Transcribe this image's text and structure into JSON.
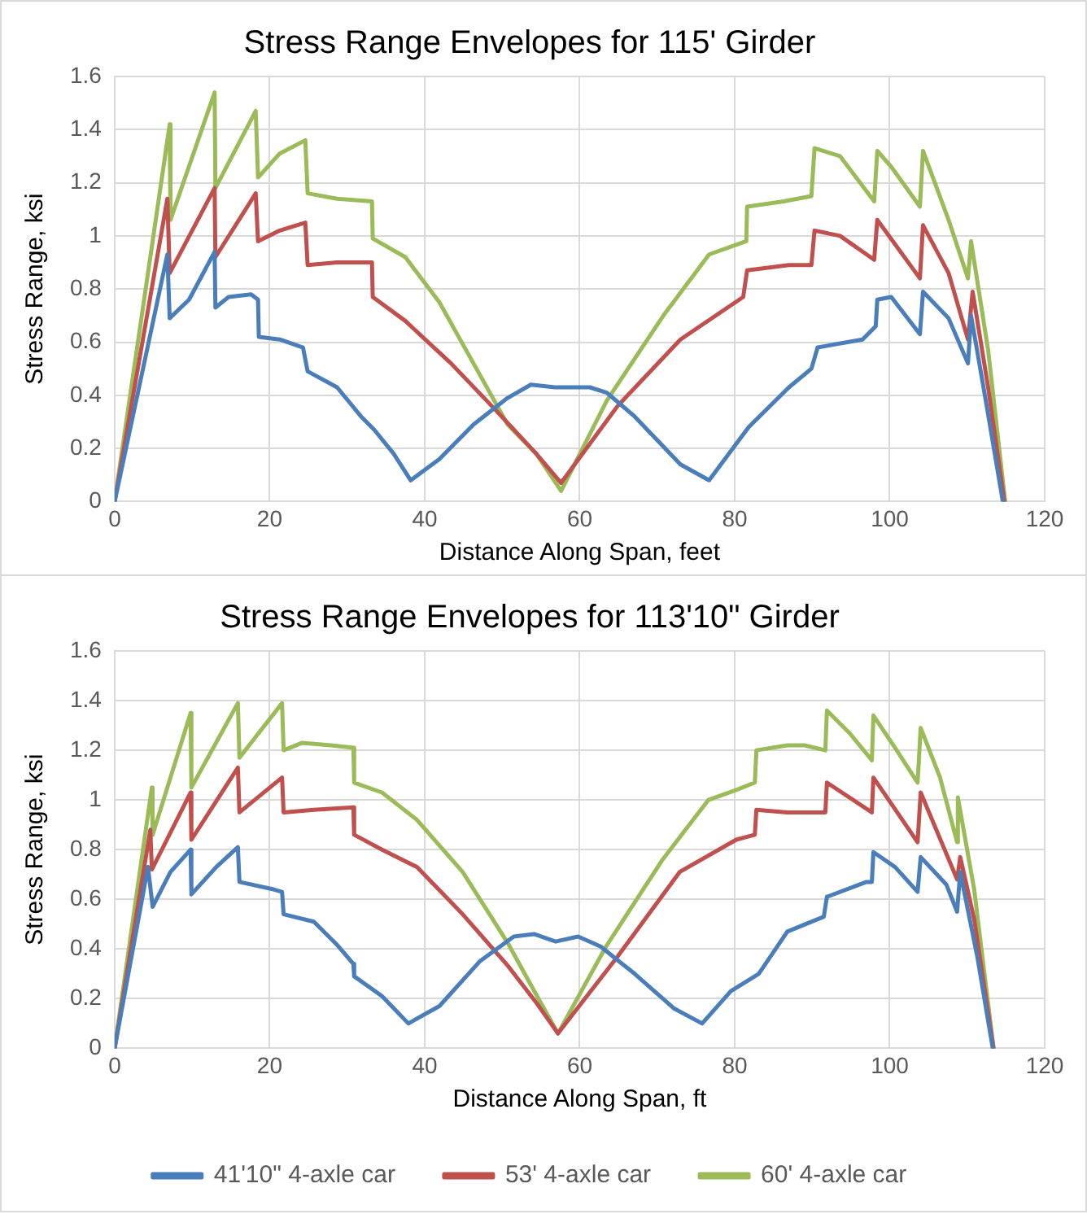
{
  "chart_data": [
    {
      "type": "line",
      "title": "Stress Range Envelopes for 115' Girder",
      "xlabel": "Distance Along Span, feet",
      "ylabel": "Stress Range, ksi",
      "xlim": [
        0,
        120
      ],
      "xticks": [
        0,
        20,
        40,
        60,
        80,
        100,
        120
      ],
      "ylim": [
        0,
        1.6
      ],
      "yticks": [
        0,
        0.2,
        0.4,
        0.6,
        0.8,
        1,
        1.2,
        1.4,
        1.6
      ],
      "grid": true,
      "marker": "none",
      "line_style": "solid",
      "legend": false,
      "series": [
        {
          "color": "#4a7ebb",
          "x": [
            0,
            6.8,
            7.1,
            9.6,
            12.9,
            13.0,
            14.7,
            17.6,
            18.5,
            18.6,
            21.3,
            24.3,
            24.9,
            28.7,
            31.8,
            33.5,
            36.0,
            38.2,
            41.9,
            46.3,
            50.7,
            53.7,
            56.8,
            61.3,
            63.5,
            67.1,
            73.0,
            76.7,
            81.8,
            87.0,
            89.9,
            90.7,
            96.5,
            98.2,
            98.4,
            100.2,
            103.9,
            104.3,
            107.6,
            110.1,
            110.5,
            112.4,
            114.6
          ],
          "values": [
            0,
            0.93,
            0.69,
            0.76,
            0.94,
            0.73,
            0.77,
            0.78,
            0.76,
            0.62,
            0.61,
            0.58,
            0.49,
            0.43,
            0.32,
            0.27,
            0.18,
            0.08,
            0.16,
            0.29,
            0.39,
            0.44,
            0.43,
            0.43,
            0.41,
            0.32,
            0.14,
            0.08,
            0.28,
            0.43,
            0.5,
            0.58,
            0.61,
            0.66,
            0.76,
            0.77,
            0.63,
            0.79,
            0.69,
            0.52,
            0.7,
            0.38,
            0
          ]
        },
        {
          "color": "#c0504d",
          "x": [
            0,
            6.8,
            7.1,
            12.9,
            13.0,
            18.2,
            18.5,
            21.3,
            24.6,
            24.9,
            28.7,
            33.2,
            33.3,
            37.5,
            43.4,
            49.3,
            54.4,
            57.6,
            64.9,
            73.0,
            81.1,
            81.6,
            87.0,
            89.9,
            90.3,
            93.6,
            98.0,
            98.4,
            103.9,
            104.3,
            107.6,
            110.1,
            110.7,
            112.7,
            114.8
          ],
          "values": [
            0,
            1.14,
            0.86,
            1.18,
            0.92,
            1.16,
            0.98,
            1.02,
            1.05,
            0.89,
            0.9,
            0.9,
            0.77,
            0.68,
            0.52,
            0.34,
            0.18,
            0.07,
            0.36,
            0.61,
            0.77,
            0.87,
            0.89,
            0.89,
            1.02,
            1.0,
            0.91,
            1.06,
            0.84,
            1.04,
            0.86,
            0.61,
            0.79,
            0.43,
            0
          ]
        },
        {
          "color": "#9bbb59",
          "x": [
            0,
            7.1,
            7.2,
            12.9,
            13.0,
            18.2,
            18.5,
            21.3,
            24.6,
            24.9,
            28.7,
            33.2,
            33.3,
            37.5,
            41.9,
            46.3,
            50.7,
            54.4,
            57.6,
            63.5,
            70.8,
            76.7,
            81.5,
            81.6,
            86.3,
            89.9,
            90.3,
            93.6,
            98.0,
            98.4,
            100.2,
            103.9,
            104.3,
            107.6,
            110.1,
            110.5,
            112.7,
            114.9
          ],
          "values": [
            0,
            1.42,
            1.06,
            1.54,
            1.18,
            1.47,
            1.22,
            1.31,
            1.36,
            1.16,
            1.14,
            1.13,
            0.99,
            0.92,
            0.75,
            0.52,
            0.29,
            0.18,
            0.04,
            0.38,
            0.7,
            0.93,
            0.98,
            1.11,
            1.13,
            1.15,
            1.33,
            1.3,
            1.13,
            1.32,
            1.26,
            1.11,
            1.32,
            1.06,
            0.84,
            0.98,
            0.57,
            0
          ]
        }
      ]
    },
    {
      "type": "line",
      "title": "Stress Range Envelopes for 113'10\" Girder",
      "xlabel": "Distance Along Span, ft",
      "ylabel": "Stress Range, ksi",
      "xlim": [
        0,
        120
      ],
      "xticks": [
        0,
        20,
        40,
        60,
        80,
        100,
        120
      ],
      "ylim": [
        0,
        1.6
      ],
      "yticks": [
        0,
        0.2,
        0.4,
        0.6,
        0.8,
        1,
        1.2,
        1.4,
        1.6
      ],
      "grid": true,
      "marker": "none",
      "line_style": "solid",
      "legend": "bottom",
      "series": [
        {
          "name": "41'10\" 4-axle car",
          "color": "#4a7ebb",
          "x": [
            0,
            4.3,
            4.9,
            7.2,
            9.8,
            9.9,
            13.1,
            15.9,
            16.1,
            20.5,
            21.6,
            21.8,
            25.7,
            28.6,
            30.8,
            30.9,
            34.5,
            37.9,
            41.9,
            47.1,
            51.5,
            54.1,
            56.9,
            59.8,
            62.7,
            67.1,
            72.2,
            75.8,
            79.5,
            83.1,
            86.8,
            91.5,
            91.9,
            97.0,
            97.7,
            97.9,
            100.7,
            103.6,
            104.0,
            107.3,
            108.7,
            109.1,
            111.3,
            113.3
          ],
          "values": [
            0,
            0.73,
            0.57,
            0.71,
            0.8,
            0.62,
            0.73,
            0.81,
            0.67,
            0.64,
            0.63,
            0.54,
            0.51,
            0.42,
            0.34,
            0.29,
            0.21,
            0.1,
            0.17,
            0.35,
            0.45,
            0.46,
            0.43,
            0.45,
            0.41,
            0.3,
            0.16,
            0.1,
            0.23,
            0.3,
            0.47,
            0.53,
            0.61,
            0.67,
            0.67,
            0.79,
            0.73,
            0.63,
            0.77,
            0.66,
            0.55,
            0.71,
            0.37,
            0
          ]
        },
        {
          "name": "53' 4-axle car",
          "color": "#c0504d",
          "x": [
            0,
            4.6,
            4.8,
            9.8,
            9.9,
            15.9,
            16.1,
            21.6,
            21.8,
            25.7,
            30.8,
            30.9,
            34.5,
            39.0,
            44.9,
            50.8,
            54.5,
            57.2,
            64.9,
            72.9,
            80.2,
            82.6,
            82.8,
            86.8,
            91.7,
            91.9,
            97.7,
            97.9,
            103.6,
            104.0,
            108.7,
            109.1,
            110.9,
            113.4
          ],
          "values": [
            0,
            0.88,
            0.72,
            1.03,
            0.84,
            1.13,
            0.95,
            1.09,
            0.95,
            0.96,
            0.97,
            0.86,
            0.8,
            0.73,
            0.54,
            0.33,
            0.18,
            0.06,
            0.37,
            0.71,
            0.84,
            0.86,
            0.96,
            0.95,
            0.95,
            1.07,
            0.95,
            1.09,
            0.83,
            1.03,
            0.68,
            0.77,
            0.52,
            0
          ]
        },
        {
          "name": "60' 4-axle car",
          "color": "#9bbb59",
          "x": [
            0,
            4.8,
            4.9,
            9.8,
            9.9,
            15.9,
            16.1,
            21.6,
            21.8,
            24.2,
            27.9,
            30.8,
            30.9,
            34.5,
            39.0,
            44.9,
            50.8,
            54.5,
            57.2,
            63.4,
            70.7,
            76.6,
            80.2,
            82.6,
            82.8,
            86.8,
            89.0,
            91.7,
            91.9,
            94.8,
            97.7,
            97.9,
            100.7,
            103.6,
            104.0,
            106.5,
            108.7,
            108.8,
            110.9,
            113.4
          ],
          "values": [
            0,
            1.05,
            0.86,
            1.35,
            1.05,
            1.39,
            1.17,
            1.39,
            1.2,
            1.23,
            1.22,
            1.21,
            1.07,
            1.03,
            0.92,
            0.71,
            0.42,
            0.21,
            0.06,
            0.41,
            0.76,
            1.0,
            1.04,
            1.07,
            1.2,
            1.22,
            1.22,
            1.2,
            1.36,
            1.27,
            1.16,
            1.34,
            1.21,
            1.07,
            1.29,
            1.09,
            0.83,
            1.01,
            0.64,
            0
          ]
        }
      ]
    }
  ]
}
